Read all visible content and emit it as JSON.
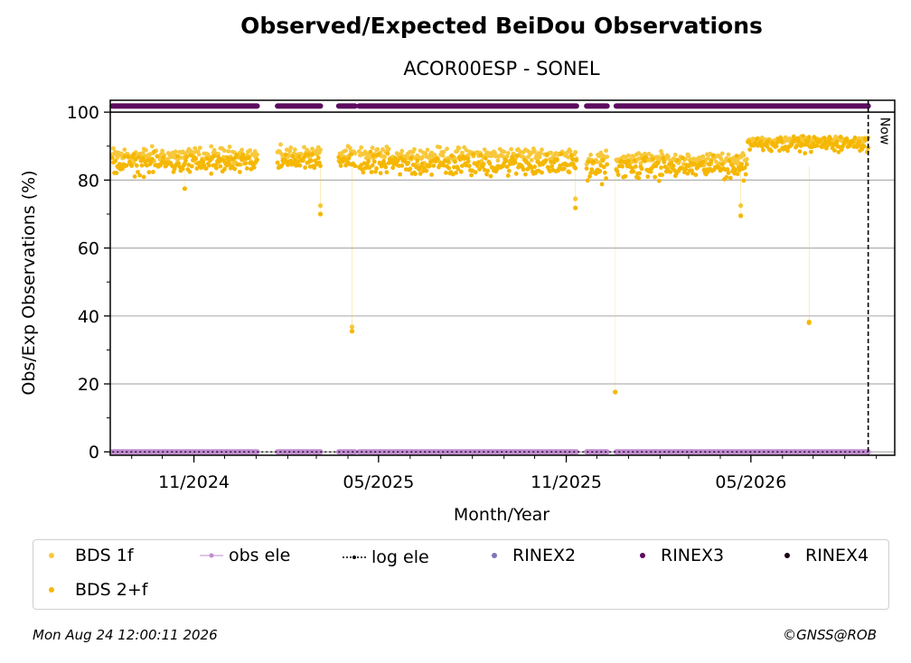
{
  "chart_data": {
    "type": "scatter",
    "title": "Observed/Expected BeiDou Observations",
    "subtitle": "ACOR00ESP - SONEL",
    "xlabel": "Month/Year",
    "ylabel": "Obs/Exp Observations (%)",
    "ylim": [
      -1,
      103.5
    ],
    "yticks": [
      0,
      20,
      40,
      60,
      80,
      100
    ],
    "xlim": [
      "2024-08-11",
      "2026-09-19"
    ],
    "xticks": [
      {
        "date": "2024-11-01",
        "label": "11/2024"
      },
      {
        "date": "2025-05-01",
        "label": "05/2025"
      },
      {
        "date": "2025-11-01",
        "label": "11/2025"
      },
      {
        "date": "2026-05-01",
        "label": "05/2026"
      }
    ],
    "grid": "horizontal",
    "now_date": "2026-08-24",
    "now_label": "Now",
    "data_periods": [
      [
        "2024-08-13",
        "2025-01-02"
      ],
      [
        "2025-01-22",
        "2025-03-05"
      ],
      [
        "2025-03-23",
        "2025-04-08"
      ],
      [
        "2025-04-12",
        "2025-11-11"
      ],
      [
        "2025-11-21",
        "2025-12-11"
      ],
      [
        "2025-12-20",
        "2026-08-24"
      ]
    ],
    "series": [
      {
        "name": "BDS 1f",
        "color": "#f8c83a",
        "segments": [
          {
            "start": "2024-08-13",
            "end": "2025-01-02",
            "mean": 87.3,
            "spread": 1.8
          },
          {
            "start": "2025-01-22",
            "end": "2025-03-05",
            "mean": 87.8,
            "spread": 1.5
          },
          {
            "start": "2025-03-23",
            "end": "2025-04-08",
            "mean": 87.6,
            "spread": 1.5
          },
          {
            "start": "2025-04-12",
            "end": "2025-11-11",
            "mean": 87.4,
            "spread": 1.6
          },
          {
            "start": "2025-11-21",
            "end": "2025-12-11",
            "mean": 86.3,
            "spread": 1.5
          },
          {
            "start": "2025-12-20",
            "end": "2026-04-27",
            "mean": 86.2,
            "spread": 1.4
          },
          {
            "start": "2026-04-28",
            "end": "2026-08-24",
            "mean": 91.6,
            "spread": 0.8
          }
        ],
        "outliers": [
          {
            "date": "2025-03-05",
            "value": 72.5
          },
          {
            "date": "2025-04-05",
            "value": 36.8
          },
          {
            "date": "2025-11-10",
            "value": 74.5
          },
          {
            "date": "2026-04-21",
            "value": 72.5
          },
          {
            "date": "2026-06-27",
            "value": 38.3
          }
        ]
      },
      {
        "name": "BDS 2+f",
        "color": "#f5b700",
        "segments": [
          {
            "start": "2024-08-13",
            "end": "2025-01-02",
            "mean": 84.6,
            "spread": 2.2
          },
          {
            "start": "2025-01-22",
            "end": "2025-03-05",
            "mean": 85.2,
            "spread": 1.6
          },
          {
            "start": "2025-03-23",
            "end": "2025-04-08",
            "mean": 85.0,
            "spread": 1.8
          },
          {
            "start": "2025-04-12",
            "end": "2025-11-11",
            "mean": 84.3,
            "spread": 2.4
          },
          {
            "start": "2025-11-21",
            "end": "2025-12-11",
            "mean": 83.0,
            "spread": 2.5
          },
          {
            "start": "2025-12-20",
            "end": "2026-04-27",
            "mean": 83.4,
            "spread": 2.3
          },
          {
            "start": "2026-04-28",
            "end": "2026-08-24",
            "mean": 90.6,
            "spread": 1.6
          }
        ],
        "outliers": [
          {
            "date": "2025-03-05",
            "value": 70.0
          },
          {
            "date": "2025-04-05",
            "value": 35.5
          },
          {
            "date": "2025-11-10",
            "value": 71.8
          },
          {
            "date": "2025-12-19",
            "value": 17.6
          },
          {
            "date": "2026-04-21",
            "value": 69.5
          },
          {
            "date": "2026-06-27",
            "value": 38.0
          },
          {
            "date": "2024-10-23",
            "value": 77.5
          }
        ]
      },
      {
        "name": "obs ele",
        "color": "#c28bd1",
        "value": 0
      },
      {
        "name": "log ele",
        "color": "#000000",
        "value": 0
      },
      {
        "name": "RINEX2",
        "color": "#7f76b8"
      },
      {
        "name": "RINEX3",
        "color": "#5c0a5e",
        "value": 101.8
      },
      {
        "name": "RINEX4",
        "color": "#1a0418"
      }
    ]
  },
  "footer": {
    "timestamp": "Mon Aug 24 12:00:11 2026",
    "credit": "©GNSS@ROB"
  }
}
